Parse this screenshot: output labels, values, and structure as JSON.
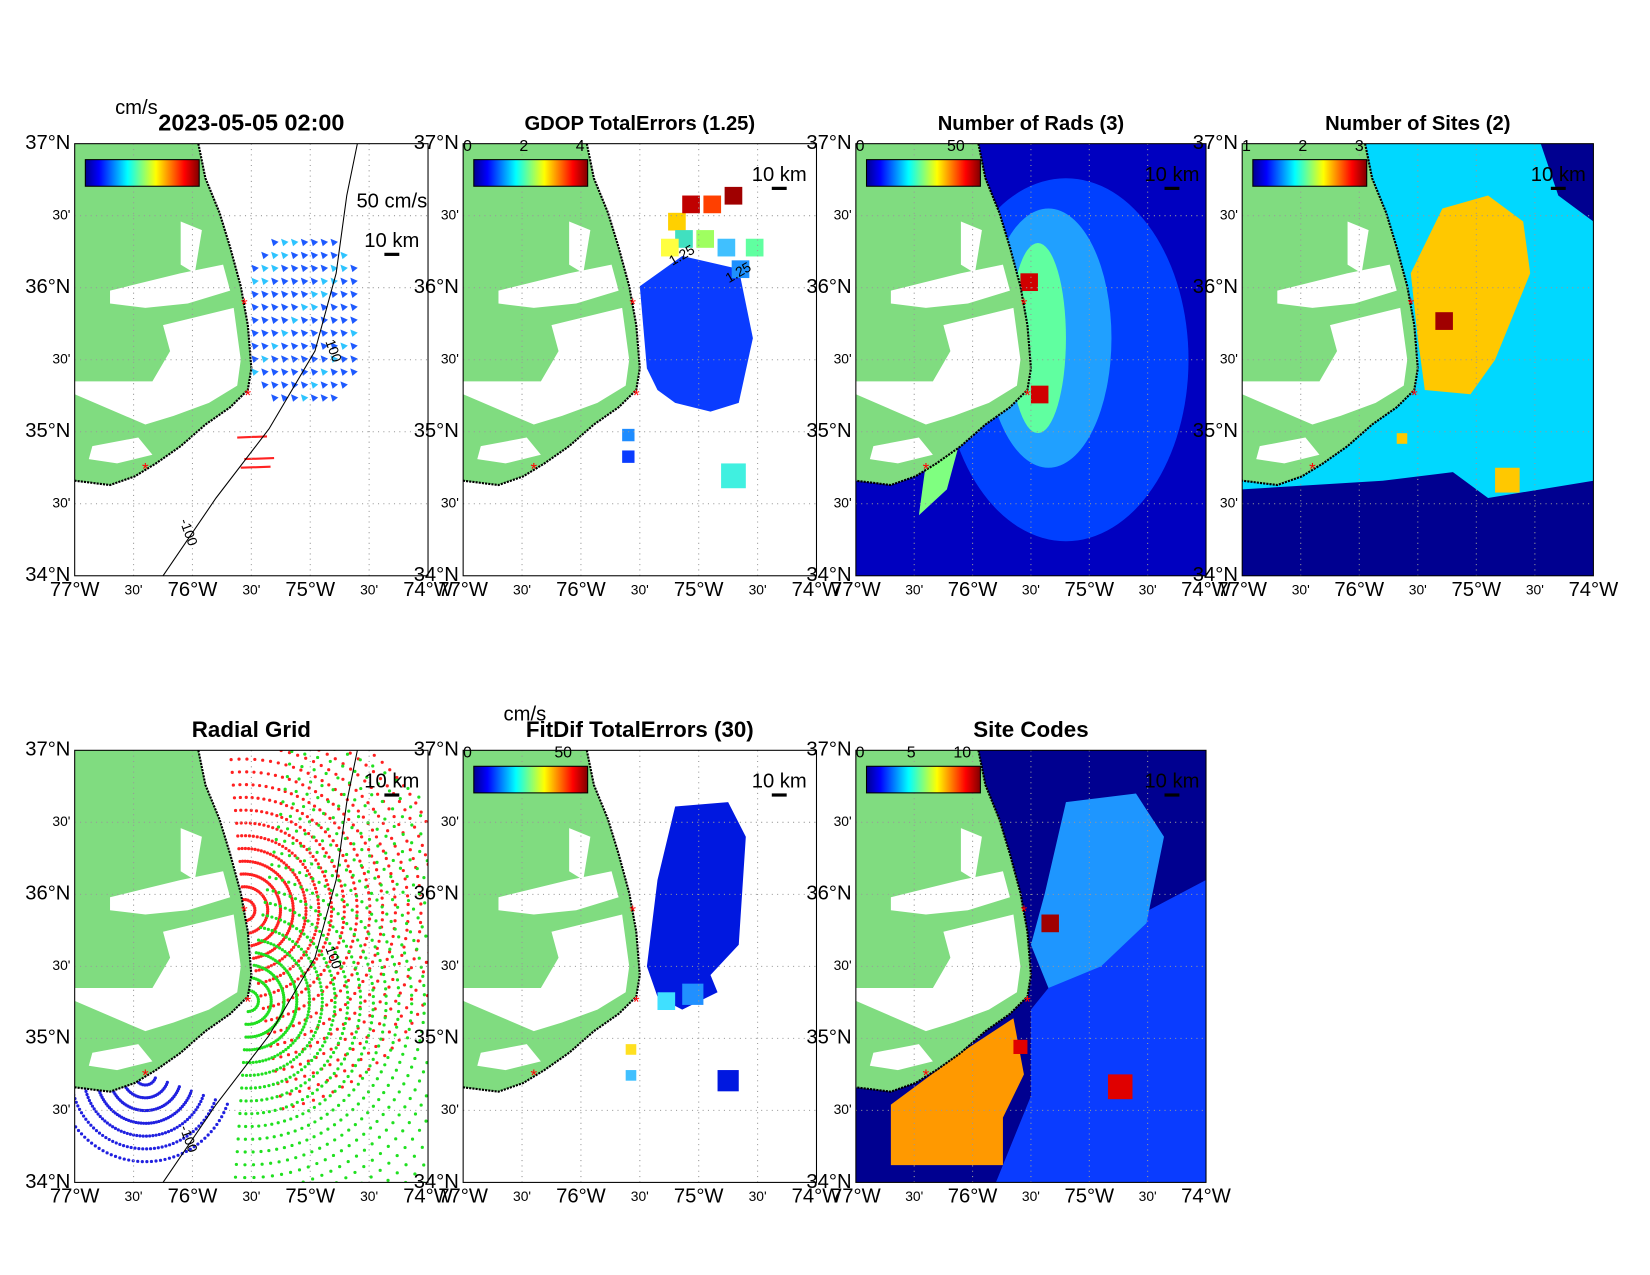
{
  "lat_ticks": [
    "37°N",
    "30'",
    "36°N",
    "30'",
    "35°N",
    "30'",
    "34°N"
  ],
  "lon_ticks": [
    "77°W",
    "30'",
    "76°W",
    "30'",
    "75°W",
    "30'",
    "74°W"
  ],
  "panels": [
    {
      "title": "2023-05-05 02:00",
      "units": "cm/s",
      "colorbar_ticks": [],
      "scale_label": "10 km",
      "vector_scale": "50 cm/s",
      "contour_labels": [
        "-100",
        "100"
      ]
    },
    {
      "title": "GDOP TotalErrors (1.25)",
      "colorbar_ticks": [
        "0",
        "2",
        "4"
      ],
      "scale_label": "10 km",
      "contour_labels": [
        "1.25",
        "1.25"
      ]
    },
    {
      "title": "Number of Rads (3)",
      "colorbar_ticks": [
        "0",
        "50"
      ],
      "scale_label": "10 km",
      "contour_labels": []
    },
    {
      "title": "Number of Sites (2)",
      "colorbar_ticks": [
        "1",
        "2",
        "3"
      ],
      "scale_label": "10 km",
      "contour_labels": []
    },
    {
      "title": "Radial Grid",
      "colorbar_ticks": [],
      "scale_label": "10 km",
      "contour_labels": [
        "-100",
        "100"
      ]
    },
    {
      "title": "FitDif TotalErrors (30)",
      "units": "cm/s",
      "colorbar_ticks": [
        "0",
        "50"
      ],
      "scale_label": "10 km",
      "contour_labels": []
    },
    {
      "title": "Site Codes",
      "colorbar_ticks": [
        "0",
        "5",
        "10"
      ],
      "scale_label": "10 km",
      "contour_labels": []
    }
  ]
}
